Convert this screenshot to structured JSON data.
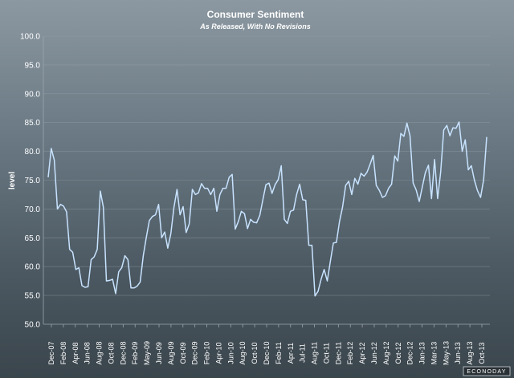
{
  "chart_data": {
    "type": "line",
    "title": "Consumer Sentiment",
    "subtitle": "As Released, With No Revisions",
    "ylabel": "level",
    "xlabel": "",
    "ylim": [
      50.0,
      100.0
    ],
    "yticks": [
      "50.0",
      "55.0",
      "60.0",
      "65.0",
      "70.0",
      "75.0",
      "80.0",
      "85.0",
      "90.0",
      "95.0",
      "100.0"
    ],
    "xtick_labels": [
      "Dec-07",
      "Feb-08",
      "Apr-08",
      "Jun-08",
      "Aug-08",
      "Oct-08",
      "Dec-08",
      "Feb-09",
      "May-09",
      "Jun-09",
      "Aug-09",
      "Oct-09",
      "Dec-09",
      "Feb-10",
      "Apr-10",
      "Jun-10",
      "Aug-10",
      "Oct-10",
      "Dec-10",
      "Feb-11",
      "Apr-11",
      "Jul-11",
      "Aug-11",
      "Oct-11",
      "Dec-11",
      "Feb-12",
      "Apr-12",
      "Jun-12",
      "Aug-12",
      "Oct-12",
      "Dec-12",
      "Jan-13",
      "Mar-13",
      "May-13",
      "Jun-13",
      "Aug-13",
      "Oct-13"
    ],
    "grid": true,
    "series": [
      {
        "color": "#c8e3ff",
        "values": [
          75.5,
          80.5,
          78.5,
          70.0,
          70.8,
          70.5,
          69.5,
          63.0,
          62.5,
          59.5,
          59.8,
          56.7,
          56.4,
          56.5,
          61.2,
          61.7,
          63.0,
          73.1,
          70.3,
          57.5,
          57.6,
          57.8,
          55.3,
          59.1,
          59.8,
          61.9,
          61.2,
          56.3,
          56.3,
          56.6,
          57.3,
          61.9,
          65.1,
          68.0,
          68.7,
          69.0,
          70.8,
          65.0,
          66.0,
          63.2,
          65.7,
          70.2,
          73.4,
          69.0,
          70.4,
          65.9,
          67.4,
          73.4,
          72.5,
          72.8,
          74.4,
          73.6,
          73.6,
          72.5,
          73.6,
          69.6,
          72.5,
          73.6,
          73.6,
          75.5,
          76.0,
          66.5,
          67.8,
          69.6,
          69.2,
          66.6,
          68.2,
          67.7,
          67.6,
          68.9,
          71.6,
          74.2,
          74.5,
          72.7,
          74.2,
          75.1,
          77.5,
          68.2,
          67.5,
          69.6,
          69.8,
          72.5,
          74.3,
          71.6,
          71.5,
          63.7,
          63.7,
          54.9,
          55.7,
          57.8,
          59.5,
          57.5,
          60.9,
          64.1,
          64.2,
          67.8,
          70.3,
          74.1,
          74.8,
          72.5,
          75.3,
          74.3,
          76.2,
          75.7,
          76.4,
          77.8,
          79.3,
          74.1,
          73.2,
          72.0,
          72.3,
          73.6,
          74.3,
          79.2,
          78.3,
          83.1,
          82.6,
          84.9,
          82.7,
          74.5,
          73.3,
          71.3,
          73.8,
          76.3,
          77.6,
          71.8,
          78.6,
          71.8,
          76.4,
          83.7,
          84.5,
          82.7,
          84.1,
          84.0,
          85.1,
          80.0,
          82.0,
          76.8,
          77.5,
          75.0,
          73.2,
          72.0,
          75.1,
          82.5
        ]
      }
    ]
  },
  "watermark": "ECONODAY"
}
